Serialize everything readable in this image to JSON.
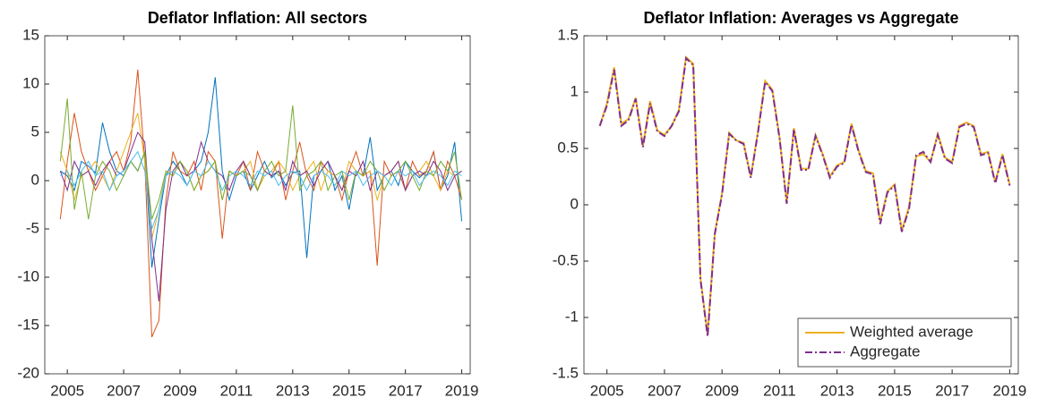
{
  "chart_data": [
    {
      "type": "line",
      "title": "Deflator Inflation: All sectors",
      "x": [
        2004.75,
        2005,
        2005.25,
        2005.5,
        2005.75,
        2006,
        2006.25,
        2006.5,
        2006.75,
        2007,
        2007.25,
        2007.5,
        2007.75,
        2008,
        2008.25,
        2008.5,
        2008.75,
        2009,
        2009.25,
        2009.5,
        2009.75,
        2010,
        2010.25,
        2010.5,
        2010.75,
        2011,
        2011.25,
        2011.5,
        2011.75,
        2012,
        2012.25,
        2012.5,
        2012.75,
        2013,
        2013.25,
        2013.5,
        2013.75,
        2014,
        2014.25,
        2014.5,
        2014.75,
        2015,
        2015.25,
        2015.5,
        2015.75,
        2016,
        2016.25,
        2016.5,
        2016.75,
        2017,
        2017.25,
        2017.5,
        2017.75,
        2018,
        2018.25,
        2018.5,
        2018.75,
        2019
      ],
      "series": [
        {
          "color": "#0072bd",
          "values": [
            1,
            0.5,
            -1,
            2,
            1.5,
            0.8,
            6,
            3,
            1,
            0.5,
            2,
            1,
            3,
            -9,
            -4,
            0.5,
            2,
            1,
            -0.5,
            1,
            2,
            5,
            10.7,
            1,
            -2,
            0.5,
            1,
            -1,
            0.5,
            2,
            0.3,
            1,
            -0.5,
            0.8,
            1,
            -8,
            0.5,
            1,
            2,
            -1,
            0.5,
            -3,
            1,
            0.5,
            4.5,
            -1,
            0.5,
            1,
            -0.5,
            2,
            1,
            0.3,
            1,
            3,
            -1,
            0.5,
            4,
            -4.2
          ]
        },
        {
          "color": "#d95319",
          "values": [
            -4,
            2,
            7,
            3,
            1,
            -1,
            0.5,
            2,
            3,
            1,
            4,
            11.5,
            2,
            -16.2,
            -14.5,
            -2,
            3,
            1,
            0.5,
            2,
            -1,
            3,
            2,
            -6,
            1,
            0.5,
            2,
            -1,
            3,
            1,
            0.5,
            2,
            -2,
            1,
            4,
            0.5,
            -1,
            2,
            1,
            0.5,
            -2,
            1,
            3,
            0.5,
            1,
            -8.8,
            2,
            0.5,
            1,
            -1,
            2,
            0.5,
            1,
            3,
            -1,
            2,
            0.5,
            -2
          ]
        },
        {
          "color": "#edb120",
          "values": [
            3,
            1,
            -2,
            0.5,
            1,
            2,
            0.5,
            -1,
            1,
            3,
            5,
            7,
            2,
            -6,
            -3,
            1,
            0.5,
            2,
            1,
            -1,
            0.5,
            1,
            2,
            -2,
            1,
            0.5,
            1,
            2,
            -1,
            0.5,
            1,
            2,
            1,
            -1,
            0.5,
            1,
            2,
            -1,
            1,
            0.5,
            -1,
            2,
            1,
            0.5,
            1,
            -2,
            0.5,
            1,
            2,
            -1,
            0.5,
            1,
            2,
            0.5,
            -1,
            1,
            0.5,
            1
          ]
        },
        {
          "color": "#7e2f8e",
          "values": [
            1,
            -1,
            2,
            0.5,
            1,
            -0.5,
            1,
            2,
            0.5,
            1,
            3,
            5,
            4,
            -6,
            -12.5,
            -3,
            1,
            2,
            0.5,
            1,
            4,
            2,
            1,
            0.5,
            -1,
            1,
            2,
            0.5,
            -1,
            1,
            0.5,
            1,
            -1,
            2,
            0.5,
            1,
            -0.5,
            1,
            2,
            0.5,
            -1,
            1,
            0.5,
            2,
            -1,
            1,
            0.5,
            1,
            2,
            -1,
            0.5,
            1,
            0.5,
            2,
            1,
            -1,
            0.5,
            1
          ]
        },
        {
          "color": "#77ac30",
          "values": [
            2,
            8.5,
            -3,
            1,
            -4,
            0.5,
            2,
            1,
            -1,
            0.5,
            2,
            1,
            3,
            -4,
            -2,
            1,
            0.5,
            2,
            1,
            -1,
            0.5,
            1,
            2,
            -2,
            1,
            0.5,
            1,
            0.5,
            -1,
            1,
            2,
            0.5,
            1,
            7.8,
            -1,
            0.5,
            1,
            2,
            -1,
            0.5,
            1,
            -2,
            1,
            0.5,
            2,
            1,
            -1,
            0.5,
            1,
            2,
            0.5,
            -1,
            1,
            0.5,
            2,
            1,
            3,
            -2
          ]
        },
        {
          "color": "#4dbeee",
          "values": [
            0.5,
            1,
            -0.5,
            1,
            2,
            0.5,
            1,
            -1,
            0.5,
            1,
            2,
            3,
            1,
            -5,
            -3,
            0.5,
            1,
            0.5,
            -0.5,
            1,
            0.5,
            2,
            1,
            -1,
            0.5,
            1,
            0.5,
            -0.5,
            1,
            0.5,
            1,
            -0.5,
            0.5,
            1,
            0.5,
            -1,
            0.5,
            1,
            0.5,
            -0.5,
            1,
            0.5,
            1,
            -0.5,
            0.5,
            1,
            0.5,
            -0.5,
            1,
            0.5,
            1,
            -0.5,
            0.5,
            1,
            0.5,
            -0.5,
            1,
            0.5
          ]
        }
      ],
      "xlim": [
        2004.2,
        2019.3
      ],
      "xticks": [
        2005,
        2007,
        2009,
        2011,
        2013,
        2015,
        2017,
        2019
      ],
      "ylim": [
        -20,
        15
      ],
      "yticks": [
        -20,
        -15,
        -10,
        -5,
        0,
        5,
        10,
        15
      ]
    },
    {
      "type": "line",
      "title": "Deflator Inflation: Averages vs Aggregate",
      "x": [
        2004.75,
        2005,
        2005.25,
        2005.5,
        2005.75,
        2006,
        2006.25,
        2006.5,
        2006.75,
        2007,
        2007.25,
        2007.5,
        2007.75,
        2008,
        2008.25,
        2008.5,
        2008.75,
        2009,
        2009.25,
        2009.5,
        2009.75,
        2010,
        2010.25,
        2010.5,
        2010.75,
        2011,
        2011.25,
        2011.5,
        2011.75,
        2012,
        2012.25,
        2012.5,
        2012.75,
        2013,
        2013.25,
        2013.5,
        2013.75,
        2014,
        2014.25,
        2014.5,
        2014.75,
        2015,
        2015.25,
        2015.5,
        2015.75,
        2016,
        2016.25,
        2016.5,
        2016.75,
        2017,
        2017.25,
        2017.5,
        2017.75,
        2018,
        2018.25,
        2018.5,
        2018.75,
        2019
      ],
      "series": [
        {
          "name": "Weighted average",
          "color": "#edb120",
          "dash": "solid",
          "values": [
            0.7,
            0.9,
            1.22,
            0.72,
            0.76,
            0.95,
            0.52,
            0.92,
            0.66,
            0.62,
            0.7,
            0.84,
            1.31,
            1.25,
            -0.65,
            -1.15,
            -0.25,
            0.1,
            0.64,
            0.57,
            0.55,
            0.25,
            0.65,
            1.1,
            1.02,
            0.6,
            0.02,
            0.68,
            0.32,
            0.32,
            0.62,
            0.45,
            0.25,
            0.35,
            0.38,
            0.72,
            0.48,
            0.3,
            0.28,
            -0.15,
            0.12,
            0.18,
            -0.23,
            -0.02,
            0.43,
            0.45,
            0.38,
            0.63,
            0.42,
            0.38,
            0.7,
            0.73,
            0.7,
            0.45,
            0.47,
            0.2,
            0.45,
            0.18
          ]
        },
        {
          "name": "Aggregate",
          "color": "#7e2f8e",
          "dash": "dashdot",
          "values": [
            0.7,
            0.88,
            1.2,
            0.7,
            0.75,
            0.94,
            0.51,
            0.9,
            0.65,
            0.61,
            0.7,
            0.83,
            1.3,
            1.24,
            -0.66,
            -1.17,
            -0.26,
            0.09,
            0.63,
            0.57,
            0.54,
            0.24,
            0.64,
            1.09,
            1.01,
            0.59,
            0.01,
            0.67,
            0.31,
            0.31,
            0.61,
            0.44,
            0.24,
            0.34,
            0.37,
            0.71,
            0.47,
            0.29,
            0.27,
            -0.17,
            0.11,
            0.17,
            -0.24,
            -0.04,
            0.44,
            0.47,
            0.38,
            0.62,
            0.41,
            0.37,
            0.69,
            0.72,
            0.69,
            0.44,
            0.46,
            0.19,
            0.44,
            0.17
          ]
        }
      ],
      "xlim": [
        2004.2,
        2019.3
      ],
      "xticks": [
        2005,
        2007,
        2009,
        2011,
        2013,
        2015,
        2017,
        2019
      ],
      "ylim": [
        -1.5,
        1.5
      ],
      "yticks": [
        -1.5,
        -1,
        -0.5,
        0,
        0.5,
        1,
        1.5
      ],
      "legend": "lower right"
    }
  ]
}
